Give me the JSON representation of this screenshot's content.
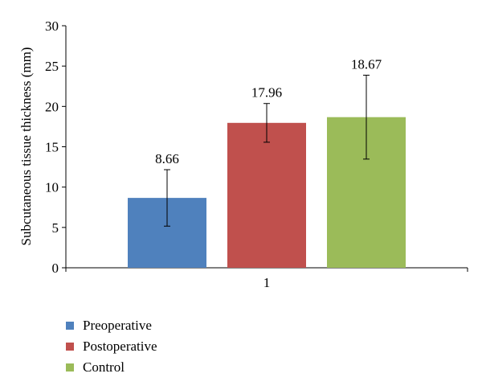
{
  "chart_data": {
    "type": "bar",
    "categories": [
      "1"
    ],
    "series": [
      {
        "name": "Preoperative",
        "values": [
          8.66
        ],
        "error": [
          3.5
        ],
        "color": "#4f81bd"
      },
      {
        "name": "Postoperative",
        "values": [
          17.96
        ],
        "error": [
          2.4
        ],
        "color": "#c0504d"
      },
      {
        "name": "Control",
        "values": [
          18.67
        ],
        "error": [
          5.2
        ],
        "color": "#9bbb59"
      }
    ],
    "data_labels": [
      "8.66",
      "17.96",
      "18.67"
    ],
    "ylabel": "Subcutaneous tissue thickness (mm)",
    "xlabel": "",
    "ylim": [
      0,
      30
    ],
    "yticks": [
      0,
      5,
      10,
      15,
      20,
      25,
      30
    ],
    "grid": false,
    "legend_position": "bottom-left"
  }
}
